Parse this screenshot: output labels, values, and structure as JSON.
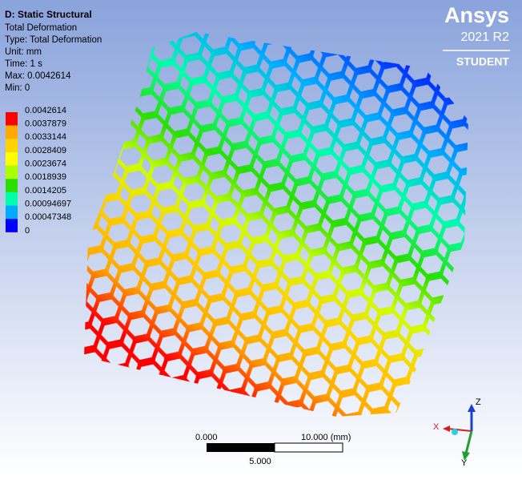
{
  "header": {
    "title": "D: Static Structural",
    "lines": [
      "Total Deformation",
      "Type: Total Deformation",
      "Unit: mm",
      "Time: 1 s",
      "Max: 0.0042614",
      "Min: 0"
    ]
  },
  "legend": {
    "labels": [
      "0.0042614",
      "0.0037879",
      "0.0033144",
      "0.0028409",
      "0.0023674",
      "0.0018939",
      "0.0014205",
      "0.00094697",
      "0.00047348",
      "0"
    ],
    "colors": [
      "#ff0000",
      "#ffaa00",
      "#ffd200",
      "#ffff00",
      "#aaff00",
      "#2ade00",
      "#00ffaa",
      "#00aaff",
      "#0000ff"
    ]
  },
  "logo": {
    "brand": "Ansys",
    "version": "2021 R2",
    "edition": "STUDENT"
  },
  "scale_bar": {
    "left": "0.000",
    "right": "10.000 (mm)",
    "middle": "5.000"
  },
  "triad": {
    "z": "Z",
    "x": "X",
    "y": "Y"
  }
}
